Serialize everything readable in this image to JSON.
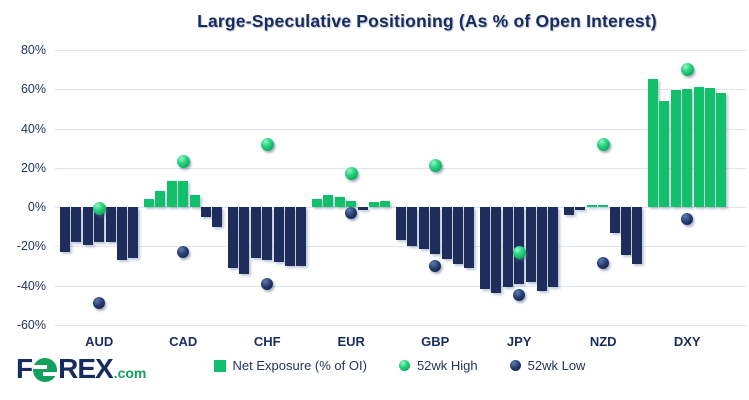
{
  "title": "Large-Speculative Positioning (As % of Open Interest)",
  "logo": {
    "f": "F",
    "rex": "REX",
    "dotcom": ".com"
  },
  "legend": {
    "net_exposure": "Net Exposure (% of OI)",
    "high": "52wk High",
    "low": "52wk Low"
  },
  "colors": {
    "bar_positive_green": "#12bf6b",
    "bar_negative_navy": "#1f2d5c",
    "text_navy": "#1b2d5e",
    "gridline": "#dde5ef",
    "high_dot_green": "#12bf6b",
    "low_dot_navy": "#15254e"
  },
  "chart_data": {
    "type": "bar",
    "title": "Large-Speculative Positioning (As % of Open Interest)",
    "xlabel": "",
    "ylabel": "",
    "ylim": [
      -60,
      80
    ],
    "ytick_step": 20,
    "yticks": [
      "80%",
      "60%",
      "40%",
      "20%",
      "0%",
      "-20%",
      "-40%",
      "-60%"
    ],
    "grid": true,
    "legend_position": "bottom",
    "categories": [
      "AUD",
      "CAD",
      "CHF",
      "EUR",
      "GBP",
      "JPY",
      "NZD",
      "DXY"
    ],
    "series_names": [
      "Net Exposure (% of OI)",
      "52wk High",
      "52wk Low"
    ],
    "groups": [
      {
        "category": "AUD",
        "net_exposure_bars": [
          -23,
          -18,
          -19.5,
          -18,
          -18,
          -27,
          -26
        ],
        "high_52wk": -1,
        "low_52wk": -49
      },
      {
        "category": "CAD",
        "net_exposure_bars": [
          4,
          8,
          13.5,
          13,
          6,
          -5,
          -10
        ],
        "high_52wk": 23,
        "low_52wk": -23
      },
      {
        "category": "CHF",
        "net_exposure_bars": [
          -31,
          -34,
          -26,
          -27,
          -28,
          -30,
          -30
        ],
        "high_52wk": 32,
        "low_52wk": -39
      },
      {
        "category": "EUR",
        "net_exposure_bars": [
          4,
          6,
          5,
          3,
          -1.5,
          2.5,
          3
        ],
        "high_52wk": 17,
        "low_52wk": -3
      },
      {
        "category": "GBP",
        "net_exposure_bars": [
          -17,
          -20,
          -21.5,
          -24,
          -26.5,
          -29,
          -31
        ],
        "high_52wk": 21,
        "low_52wk": -30
      },
      {
        "category": "JPY",
        "net_exposure_bars": [
          -42,
          -44,
          -41,
          -39,
          -38,
          -43,
          -41
        ],
        "high_52wk": -23,
        "low_52wk": -45
      },
      {
        "category": "NZD",
        "net_exposure_bars": [
          -4,
          -1.5,
          1,
          1,
          -13,
          -24.5,
          -29
        ],
        "high_52wk": 32,
        "low_52wk": -28.5
      },
      {
        "category": "DXY",
        "net_exposure_bars": [
          65,
          54,
          59.5,
          60,
          61,
          60.5,
          58
        ],
        "high_52wk": 70,
        "low_52wk": -6
      }
    ]
  }
}
